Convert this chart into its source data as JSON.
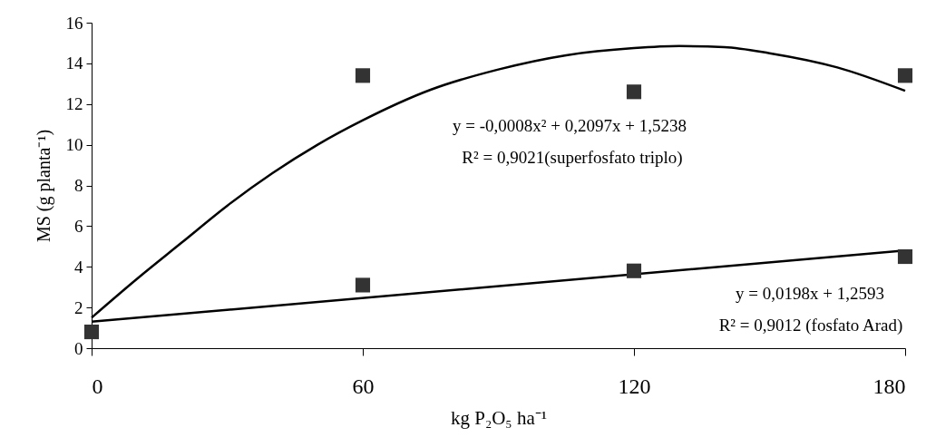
{
  "chart_data": {
    "type": "scatter",
    "xlabel": "kg P₂O₅ ha⁻¹",
    "ylabel": "MS (g planta⁻¹)",
    "xlim": [
      0,
      180
    ],
    "xticks": [
      0,
      60,
      120,
      180
    ],
    "ylim": [
      0,
      16
    ],
    "yticks": [
      0,
      2,
      4,
      6,
      8,
      10,
      12,
      14,
      16
    ],
    "marker": "square",
    "annotations": [
      "y = -0,0008x² + 0,2097x + 1,5238",
      "R² = 0,9021(superfosfato triplo)",
      "y = 0,0198x + 1,2593",
      "R² = 0,9012 (fosfato Arad)"
    ],
    "series": [
      {
        "type": "line",
        "marker": "none",
        "color": "#000000",
        "x": [
          0,
          10,
          20,
          30,
          40,
          50,
          60,
          75,
          90,
          105,
          120,
          130,
          140,
          150,
          165,
          180
        ],
        "values": [
          1.5,
          3.4,
          5.2,
          7.0,
          8.6,
          10.0,
          11.2,
          12.7,
          13.7,
          14.4,
          14.75,
          14.85,
          14.8,
          14.5,
          13.8,
          12.65
        ]
      },
      {
        "type": "line",
        "marker": "none",
        "color": "#000000",
        "x": [
          0,
          180
        ],
        "values": [
          1.3,
          4.8
        ]
      },
      {
        "color": "#333333",
        "x": [
          60,
          120,
          180
        ],
        "values": [
          13.4,
          12.6,
          13.4
        ]
      },
      {
        "color": "#333333",
        "x": [
          0,
          60,
          120,
          180
        ],
        "values": [
          0.8,
          3.1,
          3.8,
          4.5
        ]
      }
    ]
  }
}
